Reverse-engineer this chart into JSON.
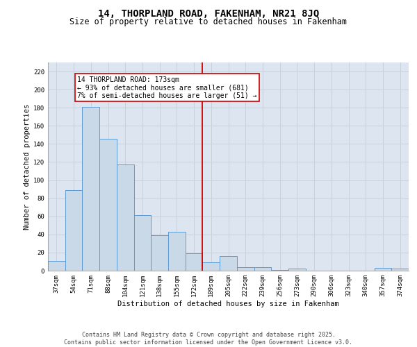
{
  "title": "14, THORPLAND ROAD, FAKENHAM, NR21 8JQ",
  "subtitle": "Size of property relative to detached houses in Fakenham",
  "xlabel": "Distribution of detached houses by size in Fakenham",
  "ylabel": "Number of detached properties",
  "categories": [
    "37sqm",
    "54sqm",
    "71sqm",
    "88sqm",
    "104sqm",
    "121sqm",
    "138sqm",
    "155sqm",
    "172sqm",
    "189sqm",
    "205sqm",
    "222sqm",
    "239sqm",
    "256sqm",
    "273sqm",
    "290sqm",
    "306sqm",
    "323sqm",
    "340sqm",
    "357sqm",
    "374sqm"
  ],
  "values": [
    11,
    89,
    181,
    146,
    117,
    61,
    39,
    43,
    19,
    9,
    16,
    4,
    4,
    1,
    2,
    0,
    0,
    0,
    0,
    3,
    2
  ],
  "bar_color": "#c9d9e8",
  "bar_edgecolor": "#5b9bd5",
  "vline_index": 8,
  "vline_color": "#cc0000",
  "annotation_text": "14 THORPLAND ROAD: 173sqm\n← 93% of detached houses are smaller (681)\n7% of semi-detached houses are larger (51) →",
  "annotation_box_color": "#ffffff",
  "annotation_box_edgecolor": "#cc0000",
  "ylim": [
    0,
    230
  ],
  "yticks": [
    0,
    20,
    40,
    60,
    80,
    100,
    120,
    140,
    160,
    180,
    200,
    220
  ],
  "grid_color": "#c8d0dc",
  "background_color": "#dde5f0",
  "footer_text": "Contains HM Land Registry data © Crown copyright and database right 2025.\nContains public sector information licensed under the Open Government Licence v3.0.",
  "title_fontsize": 10,
  "subtitle_fontsize": 8.5,
  "axis_label_fontsize": 7.5,
  "tick_fontsize": 6.5,
  "annotation_fontsize": 7,
  "footer_fontsize": 6
}
